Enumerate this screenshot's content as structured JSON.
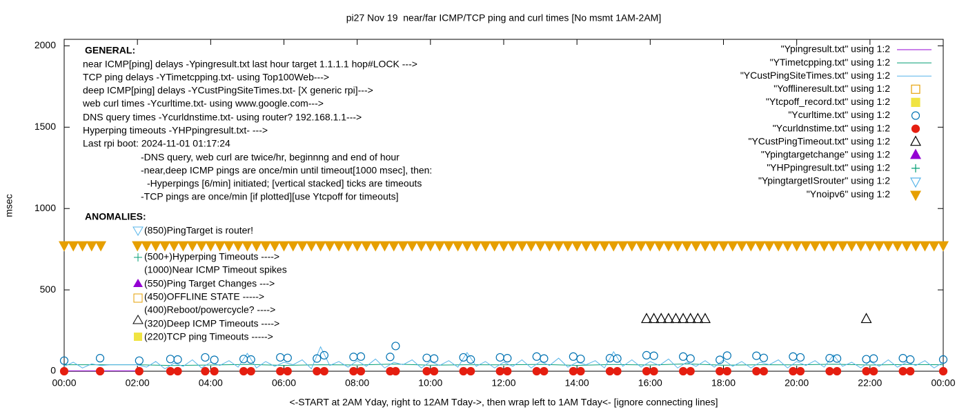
{
  "chart_data": {
    "type": "gnuplot",
    "title": "pi27 Nov 19  near/far ICMP/TCP ping and curl times [No msmt 1AM-2AM]",
    "xlabel": "<-START at 2AM Yday, right to 12AM Tday->, then wrap left to 1AM Tday<- [ignore connecting lines]",
    "ylabel": "msec",
    "xlim": [
      0,
      24
    ],
    "ylim": [
      0,
      2040
    ],
    "xticks": [
      {
        "value": 0,
        "label": "00:00"
      },
      {
        "value": 2,
        "label": "02:00"
      },
      {
        "value": 4,
        "label": "04:00"
      },
      {
        "value": 6,
        "label": "06:00"
      },
      {
        "value": 8,
        "label": "08:00"
      },
      {
        "value": 10,
        "label": "10:00"
      },
      {
        "value": 12,
        "label": "12:00"
      },
      {
        "value": 14,
        "label": "14:00"
      },
      {
        "value": 16,
        "label": "16:00"
      },
      {
        "value": 18,
        "label": "18:00"
      },
      {
        "value": 20,
        "label": "20:00"
      },
      {
        "value": 22,
        "label": "22:00"
      },
      {
        "value": 24,
        "label": "00:00"
      }
    ],
    "yticks": [
      0,
      500,
      1000,
      1500,
      2000
    ],
    "grid": false,
    "legend": "top-right",
    "general_heading": "GENERAL:",
    "general_notes": [
      "near ICMP[ping] delays -Ypingresult.txt last hour target 1.1.1.1 hop#LOCK --->",
      "TCP ping delays -YTimetcpping.txt- using Top100Web--->",
      "deep ICMP[ping] delays -YCustPingSiteTimes.txt- [X generic rpi]--->",
      "web curl times -Ycurltime.txt- using www.google.com--->",
      "DNS query times -Ycurldnstime.txt- using router? 192.168.1.1--->",
      "Hyperping timeouts -YHPpingresult.txt- --->",
      "Last rpi boot: 2024-11-01 01:17:24",
      "-DNS query, web curl are twice/hr, beginnng and end of hour",
      "-near,deep ICMP pings are once/min until timeout[1000 msec], then:",
      "-Hyperpings [6/min] initiated; [vertical stacked] ticks are timeouts",
      "-TCP pings are once/min [if plotted][use Ytcpoff for timeouts]"
    ],
    "anomaly_heading": "ANOMALIES:",
    "anomaly_notes": [
      "(850)PingTarget is router!",
      "(500+)Hyperping Timeouts ---->",
      "(1000)Near ICMP Timeout spikes",
      "(550)Ping Target Changes --->",
      "(450)OFFLINE STATE ----->",
      "(400)Reboot/powercycle? ---->",
      "(320)Deep ICMP Timeouts ---->",
      "(220)TCP ping Timeouts ----->"
    ],
    "series": [
      {
        "name": "\"Ypingresult.txt\" using 1:2",
        "style": "line",
        "color": "#9400d3",
        "x": [
          0,
          0.5,
          1,
          1.5,
          2
        ],
        "values": [
          2,
          2,
          2,
          2,
          2
        ]
      },
      {
        "name": "\"YTimetcpping.txt\" using 1:2",
        "style": "line",
        "color": "#009e73",
        "x": [
          0,
          1,
          2,
          3,
          4,
          5,
          6,
          7,
          8,
          9,
          10,
          11,
          12,
          13,
          14,
          15,
          16,
          17,
          18,
          19,
          20,
          21,
          22,
          23,
          24
        ],
        "values": [
          40,
          40,
          40,
          35,
          38,
          42,
          36,
          40,
          38,
          44,
          37,
          40,
          39,
          42,
          36,
          41,
          38,
          45,
          37,
          40,
          39,
          43,
          38,
          41,
          40
        ]
      },
      {
        "name": "\"YCustPingSiteTimes.txt\" using 1:2",
        "style": "line",
        "color": "#56b4e9",
        "x": [
          0,
          0.25,
          0.5,
          0.75,
          1,
          1.25,
          1.5,
          1.75,
          2,
          2.25,
          2.5,
          2.75,
          3,
          3.25,
          3.5,
          3.75,
          4,
          4.25,
          4.5,
          4.75,
          5,
          5.25,
          5.5,
          5.75,
          6,
          6.25,
          6.5,
          6.75,
          7,
          7.25,
          7.5,
          7.75,
          8,
          8.25,
          8.5,
          8.75,
          9,
          9.25,
          9.5,
          9.75,
          10,
          10.25,
          10.5,
          10.75,
          11,
          11.25,
          11.5,
          11.75,
          12,
          12.25,
          12.5,
          12.75,
          13,
          13.25,
          13.5,
          13.75,
          14,
          14.25,
          14.5,
          14.75,
          15,
          15.25,
          15.5,
          15.75,
          16,
          16.25,
          16.5,
          16.75,
          17,
          17.25,
          17.5,
          17.75,
          18,
          18.25,
          18.5,
          18.75,
          19,
          19.25,
          19.5,
          19.75,
          20,
          20.25,
          20.5,
          20.75,
          21,
          21.25,
          21.5,
          21.75,
          22,
          22.25,
          22.5,
          22.75,
          23,
          23.25,
          23.5,
          23.75,
          24
        ],
        "values": [
          30,
          55,
          20,
          45,
          35,
          40,
          40,
          40,
          40,
          25,
          60,
          15,
          50,
          30,
          70,
          20,
          55,
          35,
          65,
          25,
          110,
          20,
          60,
          30,
          55,
          40,
          70,
          15,
          150,
          35,
          60,
          25,
          65,
          30,
          75,
          20,
          55,
          40,
          70,
          20,
          60,
          35,
          65,
          25,
          115,
          30,
          60,
          20,
          55,
          30,
          70,
          20,
          60,
          35,
          80,
          25,
          55,
          40,
          65,
          20,
          120,
          30,
          70,
          25,
          60,
          35,
          75,
          20,
          55,
          30,
          65,
          25,
          70,
          30,
          60,
          20,
          55,
          40,
          70,
          20,
          60,
          35,
          65,
          25,
          100,
          30,
          55,
          20,
          60,
          30,
          70,
          25,
          55,
          35,
          65,
          20,
          55
        ]
      },
      {
        "name": "\"Yofflineresult.txt\" using 1:2",
        "style": "points",
        "marker": "square",
        "filled": false,
        "color": "#e69f00",
        "x": [],
        "values": []
      },
      {
        "name": "\"Ytcpoff_record.txt\" using 1:2",
        "style": "points",
        "marker": "square",
        "filled": true,
        "color": "#f0e442",
        "x": [],
        "values": []
      },
      {
        "name": "\"Ycurltime.txt\" using 1:2",
        "style": "points",
        "marker": "circle",
        "filled": false,
        "color": "#0072b2",
        "x": [
          0,
          0.98,
          2.05,
          2.9,
          3.1,
          3.85,
          4.1,
          4.9,
          5.1,
          5.9,
          6.1,
          6.9,
          7.1,
          7.9,
          8.1,
          8.9,
          9.05,
          9.9,
          10.1,
          10.9,
          11.1,
          11.9,
          12.1,
          12.9,
          13.1,
          13.9,
          14.1,
          14.9,
          15.1,
          15.9,
          16.1,
          16.9,
          17.1,
          17.9,
          18.1,
          18.9,
          19.1,
          19.9,
          20.1,
          20.9,
          21.1,
          21.9,
          22.1,
          22.9,
          23.1,
          24
        ],
        "values": [
          65,
          80,
          65,
          75,
          72,
          85,
          70,
          75,
          72,
          85,
          82,
          78,
          98,
          88,
          90,
          88,
          155,
          82,
          78,
          85,
          72,
          85,
          80,
          90,
          78,
          90,
          76,
          80,
          78,
          98,
          95,
          90,
          78,
          70,
          96,
          95,
          82,
          90,
          85,
          80,
          78,
          74,
          78,
          80,
          72,
          72
        ]
      },
      {
        "name": "\"Ycurldnstime.txt\" using 1:2",
        "style": "points",
        "marker": "circle",
        "filled": true,
        "color": "#e51e10",
        "x": [
          0,
          0.98,
          2.05,
          2.9,
          3.1,
          3.85,
          4.1,
          4.9,
          5.1,
          5.9,
          6.1,
          6.9,
          7.1,
          7.9,
          8.1,
          8.9,
          9.05,
          9.9,
          10.1,
          10.9,
          11.1,
          11.9,
          12.1,
          12.9,
          13.1,
          13.9,
          14.1,
          14.9,
          15.1,
          15.9,
          16.1,
          16.9,
          17.1,
          17.9,
          18.1,
          18.9,
          19.1,
          19.9,
          20.1,
          20.9,
          21.1,
          21.9,
          22.1,
          22.9,
          23.1,
          24
        ],
        "values": [
          0,
          0,
          0,
          0,
          0,
          0,
          0,
          0,
          0,
          0,
          0,
          0,
          0,
          0,
          0,
          0,
          0,
          0,
          0,
          0,
          0,
          0,
          0,
          0,
          0,
          0,
          0,
          0,
          0,
          0,
          0,
          0,
          0,
          0,
          0,
          0,
          0,
          0,
          0,
          0,
          0,
          0,
          0,
          0,
          0,
          0
        ]
      },
      {
        "name": "\"YCustPingTimeout.txt\" using 1:2",
        "style": "points",
        "marker": "triangle",
        "filled": false,
        "color": "#000000",
        "x": [
          15.9,
          16.1,
          16.3,
          16.5,
          16.7,
          16.9,
          17.1,
          17.3,
          17.5,
          21.9
        ],
        "values": [
          320,
          320,
          320,
          320,
          320,
          320,
          320,
          320,
          320,
          320
        ]
      },
      {
        "name": "\"Ypingtargetchange\" using 1:2",
        "style": "points",
        "marker": "triangle",
        "filled": true,
        "color": "#9400d3",
        "x": [],
        "values": []
      },
      {
        "name": "\"YHPpingresult.txt\" using 1:2",
        "style": "points",
        "marker": "plus",
        "filled": false,
        "color": "#009e73",
        "x": [],
        "values": []
      },
      {
        "name": "\"YpingtargetISrouter\" using 1:2",
        "style": "points",
        "marker": "triangle-down",
        "filled": false,
        "color": "#56b4e9",
        "x": [],
        "values": []
      },
      {
        "name": "\"Ynoipv6\" using 1:2",
        "style": "points",
        "marker": "triangle-down",
        "filled": true,
        "color": "#e69f00",
        "x": [
          0,
          0.25,
          0.5,
          0.75,
          1,
          2,
          2.25,
          2.5,
          2.75,
          3,
          3.25,
          3.5,
          3.75,
          4,
          4.25,
          4.5,
          4.75,
          5,
          5.25,
          5.5,
          5.75,
          6,
          6.25,
          6.5,
          6.75,
          7,
          7.25,
          7.5,
          7.75,
          8,
          8.25,
          8.5,
          8.75,
          9,
          9.25,
          9.5,
          9.75,
          10,
          10.25,
          10.5,
          10.75,
          11,
          11.25,
          11.5,
          11.75,
          12,
          12.25,
          12.5,
          12.75,
          13,
          13.25,
          13.5,
          13.75,
          14,
          14.25,
          14.5,
          14.75,
          15,
          15.25,
          15.5,
          15.75,
          16,
          16.25,
          16.5,
          16.75,
          17,
          17.25,
          17.5,
          17.75,
          18,
          18.25,
          18.5,
          18.75,
          19,
          19.25,
          19.5,
          19.75,
          20,
          20.25,
          20.5,
          20.75,
          21,
          21.25,
          21.5,
          21.75,
          22,
          22.25,
          22.5,
          22.75,
          23,
          23.25,
          23.5,
          23.75,
          24
        ],
        "values": [
          775,
          775,
          775,
          775,
          775,
          775,
          775,
          775,
          775,
          775,
          775,
          775,
          775,
          775,
          775,
          775,
          775,
          775,
          775,
          775,
          775,
          775,
          775,
          775,
          775,
          775,
          775,
          775,
          775,
          775,
          775,
          775,
          775,
          775,
          775,
          775,
          775,
          775,
          775,
          775,
          775,
          775,
          775,
          775,
          775,
          775,
          775,
          775,
          775,
          775,
          775,
          775,
          775,
          775,
          775,
          775,
          775,
          775,
          775,
          775,
          775,
          775,
          775,
          775,
          775,
          775,
          775,
          775,
          775,
          775,
          775,
          775,
          775,
          775,
          775,
          775,
          775,
          775,
          775,
          775,
          775,
          775,
          775,
          775,
          775,
          775,
          775,
          775,
          775,
          775,
          775,
          775,
          775,
          775
        ]
      }
    ]
  }
}
